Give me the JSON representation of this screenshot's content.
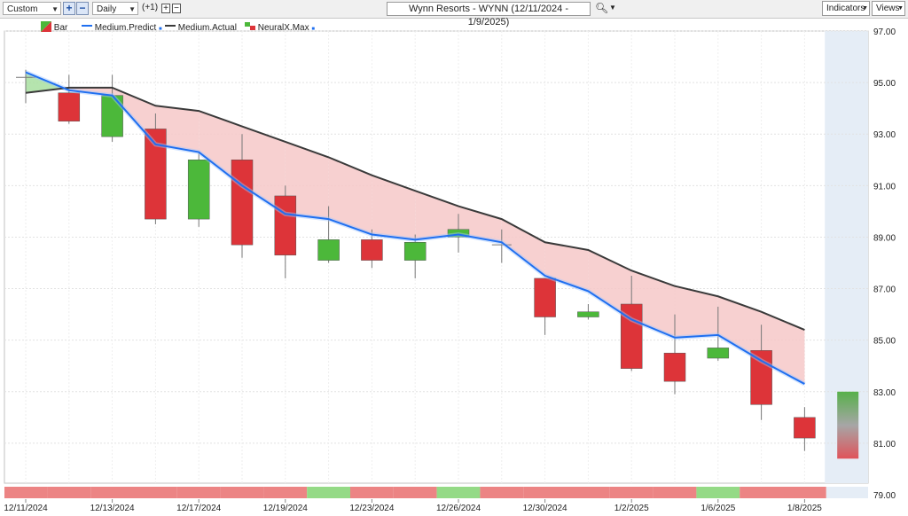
{
  "toolbar": {
    "preset": "Custom",
    "interval": "Daily",
    "offset": "(+1)",
    "title": "Wynn Resorts - WYNN (12/11/2024 - 1/9/2025)",
    "indicators_label": "Indicators",
    "views_label": "Views"
  },
  "legend": {
    "bar": "Bar",
    "predict": "Medium.Predict",
    "actual": "Medium.Actual",
    "neuralx": "NeuralX.Max"
  },
  "colors": {
    "up": "#4cb83a",
    "down": "#dd3439",
    "predict": "#1f6ff0",
    "actual": "#3a3a3a",
    "band": "#f6c8c8",
    "band_green": "#a8dfa0",
    "forecast_bg": "#e5edf6",
    "strip_red": "#ec8484",
    "strip_green": "#94da86"
  },
  "chart_data": {
    "type": "candlestick",
    "ylim": [
      79.0,
      97.0
    ],
    "y_ticks": [
      "97.00",
      "95.00",
      "93.00",
      "91.00",
      "89.00",
      "87.00",
      "85.00",
      "83.00",
      "81.00",
      "79.00"
    ],
    "x_ticks": [
      "12/11/2024",
      "12/13/2024",
      "12/17/2024",
      "12/19/2024",
      "12/23/2024",
      "12/26/2024",
      "12/30/2024",
      "1/2/2025",
      "1/6/2025",
      "1/8/2025"
    ],
    "dates": [
      "12/11/2024",
      "12/12/2024",
      "12/13/2024",
      "12/16/2024",
      "12/17/2024",
      "12/18/2024",
      "12/19/2024",
      "12/20/2024",
      "12/23/2024",
      "12/24/2024",
      "12/26/2024",
      "12/27/2024",
      "12/30/2024",
      "12/31/2024",
      "1/2/2025",
      "1/3/2025",
      "1/6/2025",
      "1/7/2025",
      "1/8/2025"
    ],
    "bars": [
      {
        "o": 95.2,
        "h": 95.5,
        "l": 94.2,
        "c": 95.2
      },
      {
        "o": 94.6,
        "h": 95.3,
        "l": 93.4,
        "c": 93.5
      },
      {
        "o": 92.9,
        "h": 95.3,
        "l": 92.7,
        "c": 94.5
      },
      {
        "o": 93.2,
        "h": 93.8,
        "l": 89.5,
        "c": 89.7
      },
      {
        "o": 89.7,
        "h": 92.3,
        "l": 89.4,
        "c": 92.0
      },
      {
        "o": 92.0,
        "h": 93.0,
        "l": 88.2,
        "c": 88.7
      },
      {
        "o": 90.6,
        "h": 91.0,
        "l": 87.4,
        "c": 88.3
      },
      {
        "o": 88.1,
        "h": 90.2,
        "l": 88.0,
        "c": 88.9
      },
      {
        "o": 88.9,
        "h": 89.3,
        "l": 87.8,
        "c": 88.1
      },
      {
        "o": 88.1,
        "h": 89.1,
        "l": 87.4,
        "c": 88.8
      },
      {
        "o": 89.0,
        "h": 89.9,
        "l": 88.4,
        "c": 89.3
      },
      {
        "o": 88.7,
        "h": 89.3,
        "l": 88.0,
        "c": 88.7
      },
      {
        "o": 87.4,
        "h": 87.4,
        "l": 85.2,
        "c": 85.9
      },
      {
        "o": 85.9,
        "h": 86.4,
        "l": 85.8,
        "c": 86.1
      },
      {
        "o": 86.4,
        "h": 87.5,
        "l": 83.8,
        "c": 83.9
      },
      {
        "o": 84.5,
        "h": 86.0,
        "l": 82.9,
        "c": 83.4
      },
      {
        "o": 84.3,
        "h": 86.3,
        "l": 84.2,
        "c": 84.7
      },
      {
        "o": 84.6,
        "h": 85.6,
        "l": 81.9,
        "c": 82.5
      },
      {
        "o": 82.0,
        "h": 82.4,
        "l": 80.7,
        "c": 81.2
      }
    ],
    "series": [
      {
        "name": "Medium.Predict",
        "values": [
          95.4,
          94.7,
          94.5,
          92.6,
          92.3,
          91.0,
          89.9,
          89.7,
          89.1,
          88.9,
          89.1,
          88.8,
          87.5,
          86.9,
          85.8,
          85.1,
          85.2,
          84.2,
          83.3
        ]
      },
      {
        "name": "Medium.Actual",
        "values": [
          94.6,
          94.8,
          94.8,
          94.1,
          93.9,
          93.3,
          92.7,
          92.1,
          91.4,
          90.8,
          90.2,
          89.7,
          88.8,
          88.5,
          87.7,
          87.1,
          86.7,
          86.1,
          85.4
        ]
      }
    ],
    "forecast_range": [
      80.4,
      83.0
    ],
    "signal_strip": [
      "red",
      "red",
      "red",
      "red",
      "red",
      "red",
      "red",
      "green",
      "red",
      "red",
      "green",
      "red",
      "red",
      "red",
      "red",
      "red",
      "green",
      "red",
      "red"
    ]
  }
}
